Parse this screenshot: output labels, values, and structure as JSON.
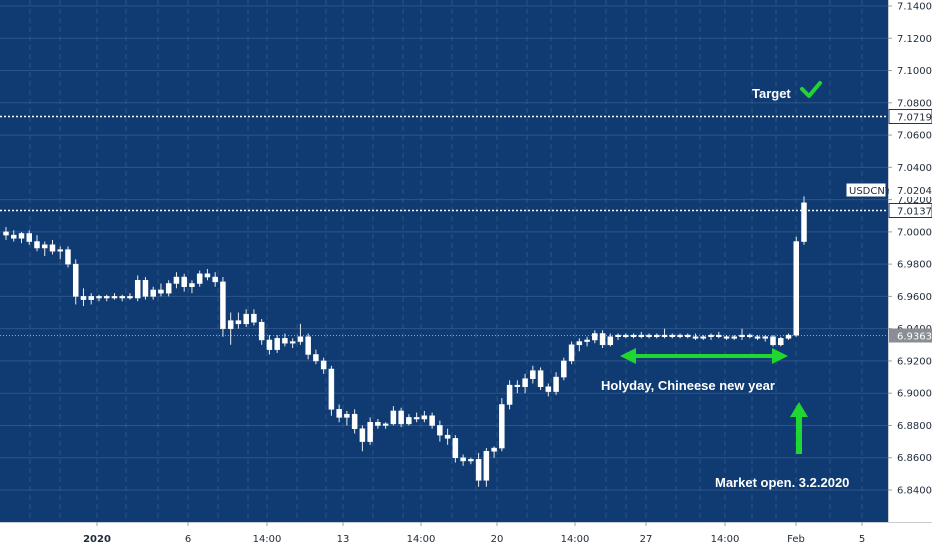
{
  "chart_data": {
    "type": "candlestick",
    "symbol": "USDCNY",
    "y_axis": {
      "range": [
        6.828,
        7.144
      ],
      "ticks": [
        "7.1400",
        "7.1200",
        "7.1000",
        "7.0800",
        "7.0600",
        "7.0400",
        "7.0200",
        "7.0000",
        "6.9800",
        "6.9600",
        "6.9400",
        "6.9200",
        "6.9000",
        "6.8800",
        "6.8600",
        "6.8400"
      ]
    },
    "x_axis": {
      "ticks": [
        "2020",
        "6",
        "14:00",
        "13",
        "14:00",
        "20",
        "14:00",
        "27",
        "14:00",
        "Feb",
        "5"
      ]
    },
    "price_levels": [
      {
        "label": "7.0719",
        "value": 7.0719,
        "style": "dotted-white",
        "tag": "boxed"
      },
      {
        "label": "7.0137",
        "value": 7.0137,
        "style": "dotted-white",
        "tag": "boxed"
      },
      {
        "label": "6.9363",
        "value": 6.9363,
        "style": "dotted-gray",
        "tag": "gray"
      }
    ],
    "price_tag": {
      "symbol": "USDCNY",
      "value": "7.0204"
    },
    "annotations": {
      "target": "Target",
      "holiday": "Holyday, Chineese new year",
      "market_open": "Market open. 3.2.2020"
    },
    "candles": [
      {
        "o": 7.0,
        "h": 7.003,
        "l": 6.995,
        "c": 6.998
      },
      {
        "o": 6.998,
        "h": 7.001,
        "l": 6.994,
        "c": 6.996
      },
      {
        "o": 6.996,
        "h": 7.0,
        "l": 6.993,
        "c": 6.999
      },
      {
        "o": 6.999,
        "h": 7.001,
        "l": 6.992,
        "c": 6.994
      },
      {
        "o": 6.994,
        "h": 6.998,
        "l": 6.988,
        "c": 6.99
      },
      {
        "o": 6.99,
        "h": 6.994,
        "l": 6.985,
        "c": 6.992
      },
      {
        "o": 6.992,
        "h": 6.995,
        "l": 6.986,
        "c": 6.988
      },
      {
        "o": 6.988,
        "h": 6.991,
        "l": 6.983,
        "c": 6.989
      },
      {
        "o": 6.989,
        "h": 6.991,
        "l": 6.978,
        "c": 6.98
      },
      {
        "o": 6.98,
        "h": 6.983,
        "l": 6.955,
        "c": 6.96
      },
      {
        "o": 6.96,
        "h": 6.965,
        "l": 6.954,
        "c": 6.958
      },
      {
        "o": 6.958,
        "h": 6.962,
        "l": 6.955,
        "c": 6.96
      },
      {
        "o": 6.96,
        "h": 6.961,
        "l": 6.957,
        "c": 6.959
      },
      {
        "o": 6.959,
        "h": 6.961,
        "l": 6.957,
        "c": 6.96
      },
      {
        "o": 6.96,
        "h": 6.962,
        "l": 6.958,
        "c": 6.959
      },
      {
        "o": 6.959,
        "h": 6.961,
        "l": 6.957,
        "c": 6.96
      },
      {
        "o": 6.96,
        "h": 6.962,
        "l": 6.958,
        "c": 6.959
      },
      {
        "o": 6.959,
        "h": 6.973,
        "l": 6.957,
        "c": 6.97
      },
      {
        "o": 6.97,
        "h": 6.972,
        "l": 6.958,
        "c": 6.96
      },
      {
        "o": 6.96,
        "h": 6.966,
        "l": 6.958,
        "c": 6.964
      },
      {
        "o": 6.964,
        "h": 6.968,
        "l": 6.96,
        "c": 6.962
      },
      {
        "o": 6.962,
        "h": 6.97,
        "l": 6.96,
        "c": 6.968
      },
      {
        "o": 6.968,
        "h": 6.975,
        "l": 6.965,
        "c": 6.972
      },
      {
        "o": 6.972,
        "h": 6.974,
        "l": 6.963,
        "c": 6.966
      },
      {
        "o": 6.966,
        "h": 6.97,
        "l": 6.962,
        "c": 6.968
      },
      {
        "o": 6.968,
        "h": 6.976,
        "l": 6.966,
        "c": 6.974
      },
      {
        "o": 6.974,
        "h": 6.977,
        "l": 6.97,
        "c": 6.972
      },
      {
        "o": 6.972,
        "h": 6.975,
        "l": 6.966,
        "c": 6.969
      },
      {
        "o": 6.969,
        "h": 6.972,
        "l": 6.935,
        "c": 6.94
      },
      {
        "o": 6.94,
        "h": 6.95,
        "l": 6.93,
        "c": 6.945
      },
      {
        "o": 6.945,
        "h": 6.95,
        "l": 6.94,
        "c": 6.943
      },
      {
        "o": 6.943,
        "h": 6.952,
        "l": 6.941,
        "c": 6.949
      },
      {
        "o": 6.949,
        "h": 6.952,
        "l": 6.942,
        "c": 6.944
      },
      {
        "o": 6.944,
        "h": 6.946,
        "l": 6.93,
        "c": 6.933
      },
      {
        "o": 6.933,
        "h": 6.936,
        "l": 6.924,
        "c": 6.927
      },
      {
        "o": 6.927,
        "h": 6.936,
        "l": 6.925,
        "c": 6.934
      },
      {
        "o": 6.934,
        "h": 6.937,
        "l": 6.929,
        "c": 6.931
      },
      {
        "o": 6.931,
        "h": 6.934,
        "l": 6.928,
        "c": 6.932
      },
      {
        "o": 6.932,
        "h": 6.943,
        "l": 6.93,
        "c": 6.935
      },
      {
        "o": 6.935,
        "h": 6.937,
        "l": 6.921,
        "c": 6.924
      },
      {
        "o": 6.924,
        "h": 6.927,
        "l": 6.918,
        "c": 6.92
      },
      {
        "o": 6.92,
        "h": 6.922,
        "l": 6.912,
        "c": 6.915
      },
      {
        "o": 6.915,
        "h": 6.917,
        "l": 6.886,
        "c": 6.89
      },
      {
        "o": 6.89,
        "h": 6.893,
        "l": 6.882,
        "c": 6.885
      },
      {
        "o": 6.885,
        "h": 6.889,
        "l": 6.88,
        "c": 6.887
      },
      {
        "o": 6.887,
        "h": 6.89,
        "l": 6.875,
        "c": 6.878
      },
      {
        "o": 6.878,
        "h": 6.88,
        "l": 6.864,
        "c": 6.87
      },
      {
        "o": 6.87,
        "h": 6.885,
        "l": 6.868,
        "c": 6.882
      },
      {
        "o": 6.882,
        "h": 6.884,
        "l": 6.878,
        "c": 6.88
      },
      {
        "o": 6.88,
        "h": 6.882,
        "l": 6.878,
        "c": 6.881
      },
      {
        "o": 6.881,
        "h": 6.892,
        "l": 6.88,
        "c": 6.889
      },
      {
        "o": 6.889,
        "h": 6.891,
        "l": 6.879,
        "c": 6.881
      },
      {
        "o": 6.881,
        "h": 6.887,
        "l": 6.88,
        "c": 6.885
      },
      {
        "o": 6.885,
        "h": 6.888,
        "l": 6.882,
        "c": 6.884
      },
      {
        "o": 6.884,
        "h": 6.889,
        "l": 6.882,
        "c": 6.886
      },
      {
        "o": 6.886,
        "h": 6.888,
        "l": 6.878,
        "c": 6.88
      },
      {
        "o": 6.88,
        "h": 6.883,
        "l": 6.87,
        "c": 6.874
      },
      {
        "o": 6.874,
        "h": 6.878,
        "l": 6.868,
        "c": 6.872
      },
      {
        "o": 6.872,
        "h": 6.874,
        "l": 6.857,
        "c": 6.86
      },
      {
        "o": 6.86,
        "h": 6.862,
        "l": 6.855,
        "c": 6.858
      },
      {
        "o": 6.858,
        "h": 6.86,
        "l": 6.856,
        "c": 6.859
      },
      {
        "o": 6.859,
        "h": 6.863,
        "l": 6.842,
        "c": 6.846
      },
      {
        "o": 6.846,
        "h": 6.866,
        "l": 6.842,
        "c": 6.864
      },
      {
        "o": 6.864,
        "h": 6.867,
        "l": 6.86,
        "c": 6.866
      },
      {
        "o": 6.866,
        "h": 6.897,
        "l": 6.864,
        "c": 6.893
      },
      {
        "o": 6.893,
        "h": 6.908,
        "l": 6.89,
        "c": 6.905
      },
      {
        "o": 6.905,
        "h": 6.908,
        "l": 6.9,
        "c": 6.904
      },
      {
        "o": 6.904,
        "h": 6.912,
        "l": 6.9,
        "c": 6.909
      },
      {
        "o": 6.909,
        "h": 6.917,
        "l": 6.906,
        "c": 6.914
      },
      {
        "o": 6.914,
        "h": 6.916,
        "l": 6.902,
        "c": 6.904
      },
      {
        "o": 6.904,
        "h": 6.906,
        "l": 6.898,
        "c": 6.901
      },
      {
        "o": 6.901,
        "h": 6.913,
        "l": 6.899,
        "c": 6.91
      },
      {
        "o": 6.91,
        "h": 6.922,
        "l": 6.908,
        "c": 6.92
      },
      {
        "o": 6.92,
        "h": 6.932,
        "l": 6.918,
        "c": 6.93
      },
      {
        "o": 6.93,
        "h": 6.934,
        "l": 6.926,
        "c": 6.932
      },
      {
        "o": 6.932,
        "h": 6.935,
        "l": 6.929,
        "c": 6.933
      },
      {
        "o": 6.933,
        "h": 6.939,
        "l": 6.931,
        "c": 6.937
      },
      {
        "o": 6.937,
        "h": 6.939,
        "l": 6.928,
        "c": 6.93
      },
      {
        "o": 6.93,
        "h": 6.937,
        "l": 6.929,
        "c": 6.935
      },
      {
        "o": 6.935,
        "h": 6.937,
        "l": 6.933,
        "c": 6.936
      },
      {
        "o": 6.936,
        "h": 6.937,
        "l": 6.934,
        "c": 6.935
      },
      {
        "o": 6.935,
        "h": 6.937,
        "l": 6.934,
        "c": 6.936
      },
      {
        "o": 6.936,
        "h": 6.938,
        "l": 6.934,
        "c": 6.935
      },
      {
        "o": 6.935,
        "h": 6.937,
        "l": 6.934,
        "c": 6.936
      },
      {
        "o": 6.936,
        "h": 6.937,
        "l": 6.934,
        "c": 6.935
      },
      {
        "o": 6.935,
        "h": 6.94,
        "l": 6.934,
        "c": 6.936
      },
      {
        "o": 6.936,
        "h": 6.937,
        "l": 6.934,
        "c": 6.935
      },
      {
        "o": 6.935,
        "h": 6.937,
        "l": 6.934,
        "c": 6.936
      },
      {
        "o": 6.936,
        "h": 6.937,
        "l": 6.934,
        "c": 6.935
      },
      {
        "o": 6.935,
        "h": 6.937,
        "l": 6.933,
        "c": 6.934
      },
      {
        "o": 6.934,
        "h": 6.936,
        "l": 6.933,
        "c": 6.935
      },
      {
        "o": 6.935,
        "h": 6.937,
        "l": 6.933,
        "c": 6.936
      },
      {
        "o": 6.936,
        "h": 6.938,
        "l": 6.934,
        "c": 6.935
      },
      {
        "o": 6.935,
        "h": 6.936,
        "l": 6.933,
        "c": 6.934
      },
      {
        "o": 6.934,
        "h": 6.936,
        "l": 6.933,
        "c": 6.935
      },
      {
        "o": 6.935,
        "h": 6.94,
        "l": 6.933,
        "c": 6.936
      },
      {
        "o": 6.936,
        "h": 6.937,
        "l": 6.934,
        "c": 6.935
      },
      {
        "o": 6.935,
        "h": 6.936,
        "l": 6.933,
        "c": 6.934
      },
      {
        "o": 6.934,
        "h": 6.936,
        "l": 6.932,
        "c": 6.935
      },
      {
        "o": 6.935,
        "h": 6.936,
        "l": 6.929,
        "c": 6.93
      },
      {
        "o": 6.93,
        "h": 6.935,
        "l": 6.929,
        "c": 6.934
      },
      {
        "o": 6.934,
        "h": 6.937,
        "l": 6.933,
        "c": 6.936
      },
      {
        "o": 6.936,
        "h": 6.997,
        "l": 6.935,
        "c": 6.994
      },
      {
        "o": 6.994,
        "h": 7.022,
        "l": 6.992,
        "c": 7.018
      }
    ]
  }
}
